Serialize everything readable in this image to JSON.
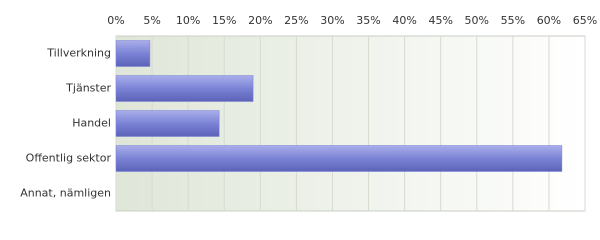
{
  "chart_data": {
    "type": "bar",
    "orientation": "horizontal",
    "categories": [
      "Tillverkning",
      "Tjänster",
      "Handel",
      "Offentlig sektor",
      "Annat, nämligen"
    ],
    "values": [
      4.7,
      19.0,
      14.3,
      61.8,
      0
    ],
    "color": "#7b83d6",
    "xlim": [
      0,
      65
    ],
    "xticks": [
      {
        "value": 0,
        "label": "0%"
      },
      {
        "value": 5,
        "label": "5%"
      },
      {
        "value": 10,
        "label": "10%"
      },
      {
        "value": 15,
        "label": "15%"
      },
      {
        "value": 20,
        "label": "20%"
      },
      {
        "value": 25,
        "label": "25%"
      },
      {
        "value": 30,
        "label": "30%"
      },
      {
        "value": 35,
        "label": "35%"
      },
      {
        "value": 40,
        "label": "40%"
      },
      {
        "value": 45,
        "label": "45%"
      },
      {
        "value": 50,
        "label": "50%"
      },
      {
        "value": 55,
        "label": "55%"
      },
      {
        "value": 60,
        "label": "60%"
      },
      {
        "value": 65,
        "label": "65%"
      }
    ],
    "grid": true
  }
}
